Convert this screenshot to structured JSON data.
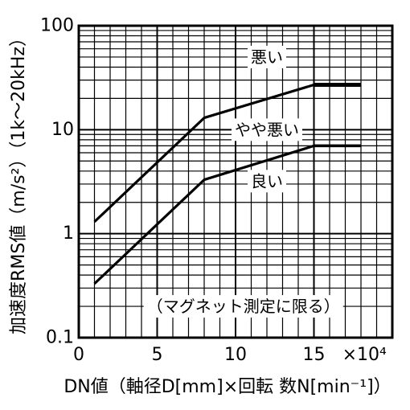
{
  "chart_data": {
    "type": "line",
    "title": "",
    "xlabel": "DN値（軸径D[mm]×回転 数N[min⁻¹]）",
    "ylabel": "加速度RMS値（m/s²）（1k～20kHz）",
    "x_multiplier_label": "×10⁴",
    "xlim": [
      0,
      20
    ],
    "ylim": [
      0.1,
      100
    ],
    "y_scale": "log",
    "x_ticks": [
      0,
      5,
      10,
      15
    ],
    "x_tick_labels": [
      "0",
      "5",
      "10",
      "15"
    ],
    "y_ticks": [
      0.1,
      1,
      10,
      100
    ],
    "y_tick_labels": [
      "0.1",
      "1",
      "10",
      "100"
    ],
    "grid": true,
    "series": [
      {
        "x": [
          1,
          8,
          15,
          18
        ],
        "y": [
          1.3,
          13,
          27,
          27
        ]
      },
      {
        "x": [
          1,
          8,
          15,
          18
        ],
        "y": [
          0.33,
          3.3,
          7,
          7
        ]
      }
    ],
    "annotations": [
      {
        "text": "悪い",
        "x": 12,
        "y": 50
      },
      {
        "text": "やや悪い",
        "x": 12,
        "y": 10
      },
      {
        "text": "良い",
        "x": 12,
        "y": 3.2
      },
      {
        "text": "（マグネット測定に限る）",
        "x": 10.5,
        "y": 0.2
      }
    ]
  }
}
